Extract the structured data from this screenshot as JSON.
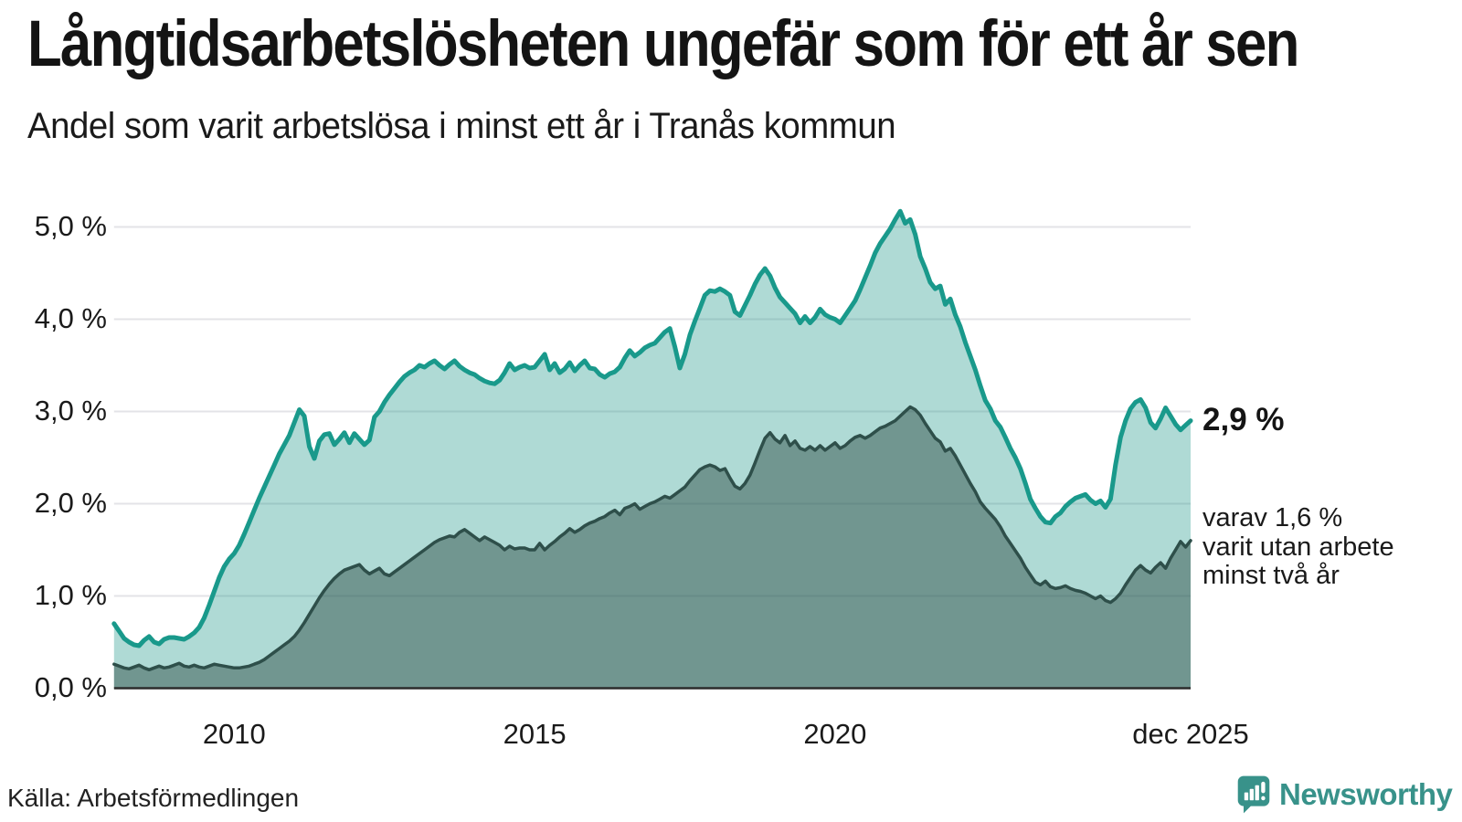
{
  "header": {
    "title": "Långtidsarbetslösheten ungefär som för ett år sen",
    "subtitle": "Andel som varit arbetslösa i minst ett år i Tranås kommun"
  },
  "annotations": {
    "total_label": "2,9 %",
    "sub_lines": [
      "varav 1,6 %",
      "varit utan arbete",
      "minst två år"
    ]
  },
  "footer": {
    "source": "Källa: Arbetsförmedlingen",
    "logo_text": "Newsworthy",
    "logo_icon": "speech-bubble-bar-chart-icon"
  },
  "colors": {
    "accent_teal": "#19998B",
    "fill_light": "rgba(25,150,135,0.35)",
    "line_dark": "#2E4F4A",
    "fill_dark": "rgba(45,75,70,0.48)",
    "gridline": "#E3E3E7",
    "axis_line": "#2B2B2B",
    "text": "#1A1A1A",
    "logo_teal": "#38928A"
  },
  "chart_data": {
    "type": "area",
    "title": "Långtidsarbetslösheten ungefär som för ett år sen",
    "subtitle": "Andel som varit arbetslösa i minst ett år i Tranås kommun",
    "unit": "%",
    "x_start": "jan 2008",
    "x_end": "dec 2025",
    "points_per_year": 12,
    "start_year": 2008,
    "ylim": [
      0,
      5.4
    ],
    "grid": "horizontal",
    "y_tick_labels": [
      "5,0 %",
      "4,0 %",
      "3,0 %",
      "2,0 %",
      "1,0 %",
      "0,0 %"
    ],
    "y_tick_values": [
      5,
      4,
      3,
      2,
      1,
      0
    ],
    "x_tick_labels": [
      "2010",
      "2015",
      "2020",
      "dec 2025"
    ],
    "x_tick_month_index": [
      24,
      84,
      144,
      215
    ],
    "series": [
      {
        "name": "arbetslösa i minst ett år",
        "end_label": "2,9 %",
        "end_value": 2.9,
        "values": [
          0.7,
          0.62,
          0.54,
          0.5,
          0.47,
          0.46,
          0.52,
          0.56,
          0.5,
          0.48,
          0.53,
          0.55,
          0.55,
          0.54,
          0.53,
          0.56,
          0.6,
          0.66,
          0.76,
          0.9,
          1.05,
          1.2,
          1.32,
          1.4,
          1.46,
          1.55,
          1.67,
          1.8,
          1.93,
          2.06,
          2.18,
          2.3,
          2.42,
          2.54,
          2.64,
          2.74,
          2.88,
          3.02,
          2.95,
          2.62,
          2.49,
          2.68,
          2.75,
          2.76,
          2.64,
          2.7,
          2.77,
          2.66,
          2.76,
          2.7,
          2.64,
          2.69,
          2.94,
          3.0,
          3.1,
          3.18,
          3.25,
          3.32,
          3.38,
          3.42,
          3.45,
          3.5,
          3.48,
          3.52,
          3.55,
          3.5,
          3.46,
          3.51,
          3.55,
          3.49,
          3.45,
          3.42,
          3.4,
          3.36,
          3.33,
          3.31,
          3.3,
          3.34,
          3.42,
          3.52,
          3.45,
          3.48,
          3.5,
          3.47,
          3.48,
          3.55,
          3.62,
          3.45,
          3.52,
          3.42,
          3.46,
          3.53,
          3.44,
          3.5,
          3.55,
          3.47,
          3.46,
          3.4,
          3.37,
          3.41,
          3.43,
          3.48,
          3.58,
          3.66,
          3.6,
          3.64,
          3.69,
          3.72,
          3.74,
          3.8,
          3.86,
          3.9,
          3.7,
          3.47,
          3.62,
          3.83,
          3.98,
          4.12,
          4.26,
          4.31,
          4.3,
          4.33,
          4.3,
          4.26,
          4.08,
          4.04,
          4.15,
          4.26,
          4.38,
          4.48,
          4.55,
          4.47,
          4.34,
          4.24,
          4.18,
          4.12,
          4.06,
          3.96,
          4.03,
          3.96,
          4.02,
          4.11,
          4.05,
          4.02,
          4.0,
          3.96,
          4.04,
          4.12,
          4.2,
          4.32,
          4.45,
          4.58,
          4.72,
          4.82,
          4.9,
          4.98,
          5.08,
          5.17,
          5.04,
          5.08,
          4.92,
          4.68,
          4.55,
          4.4,
          4.33,
          4.36,
          4.16,
          4.22,
          4.05,
          3.92,
          3.75,
          3.6,
          3.45,
          3.28,
          3.12,
          3.03,
          2.9,
          2.83,
          2.72,
          2.6,
          2.5,
          2.38,
          2.22,
          2.05,
          1.95,
          1.86,
          1.8,
          1.79,
          1.86,
          1.9,
          1.97,
          2.02,
          2.06,
          2.08,
          2.1,
          2.04,
          2.0,
          2.03,
          1.96,
          2.05,
          2.42,
          2.72,
          2.9,
          3.03,
          3.1,
          3.13,
          3.04,
          2.88,
          2.82,
          2.92,
          3.04,
          2.95,
          2.86,
          2.8,
          2.85,
          2.9
        ]
      },
      {
        "name": "varav varit utan arbete minst två år",
        "end_label": "varav 1,6 %",
        "end_value": 1.6,
        "values": [
          0.26,
          0.24,
          0.22,
          0.21,
          0.23,
          0.25,
          0.22,
          0.2,
          0.22,
          0.24,
          0.22,
          0.23,
          0.25,
          0.27,
          0.24,
          0.23,
          0.25,
          0.23,
          0.22,
          0.24,
          0.26,
          0.25,
          0.24,
          0.23,
          0.22,
          0.22,
          0.23,
          0.24,
          0.26,
          0.28,
          0.31,
          0.35,
          0.39,
          0.43,
          0.47,
          0.51,
          0.56,
          0.63,
          0.71,
          0.8,
          0.89,
          0.98,
          1.06,
          1.13,
          1.19,
          1.24,
          1.28,
          1.3,
          1.32,
          1.34,
          1.28,
          1.24,
          1.27,
          1.3,
          1.24,
          1.22,
          1.26,
          1.3,
          1.34,
          1.38,
          1.42,
          1.46,
          1.5,
          1.54,
          1.58,
          1.61,
          1.63,
          1.65,
          1.64,
          1.69,
          1.72,
          1.68,
          1.64,
          1.6,
          1.64,
          1.61,
          1.58,
          1.55,
          1.5,
          1.54,
          1.51,
          1.52,
          1.52,
          1.5,
          1.5,
          1.57,
          1.5,
          1.55,
          1.59,
          1.64,
          1.68,
          1.73,
          1.69,
          1.72,
          1.76,
          1.79,
          1.81,
          1.84,
          1.86,
          1.9,
          1.93,
          1.88,
          1.95,
          1.97,
          2.0,
          1.94,
          1.97,
          2.0,
          2.02,
          2.05,
          2.08,
          2.06,
          2.1,
          2.14,
          2.18,
          2.25,
          2.31,
          2.37,
          2.4,
          2.42,
          2.4,
          2.36,
          2.38,
          2.28,
          2.19,
          2.16,
          2.22,
          2.31,
          2.44,
          2.58,
          2.71,
          2.77,
          2.7,
          2.66,
          2.74,
          2.63,
          2.68,
          2.6,
          2.58,
          2.62,
          2.58,
          2.63,
          2.58,
          2.62,
          2.66,
          2.6,
          2.63,
          2.68,
          2.72,
          2.74,
          2.71,
          2.74,
          2.78,
          2.82,
          2.84,
          2.87,
          2.9,
          2.95,
          3.0,
          3.05,
          3.02,
          2.96,
          2.87,
          2.79,
          2.71,
          2.67,
          2.57,
          2.6,
          2.52,
          2.42,
          2.32,
          2.22,
          2.13,
          2.02,
          1.95,
          1.89,
          1.83,
          1.75,
          1.65,
          1.57,
          1.49,
          1.41,
          1.31,
          1.23,
          1.15,
          1.12,
          1.16,
          1.1,
          1.08,
          1.09,
          1.11,
          1.08,
          1.06,
          1.05,
          1.03,
          1.0,
          0.97,
          1.0,
          0.95,
          0.93,
          0.97,
          1.03,
          1.12,
          1.2,
          1.28,
          1.33,
          1.28,
          1.25,
          1.31,
          1.36,
          1.3,
          1.41,
          1.5,
          1.59,
          1.53,
          1.6
        ]
      }
    ]
  }
}
